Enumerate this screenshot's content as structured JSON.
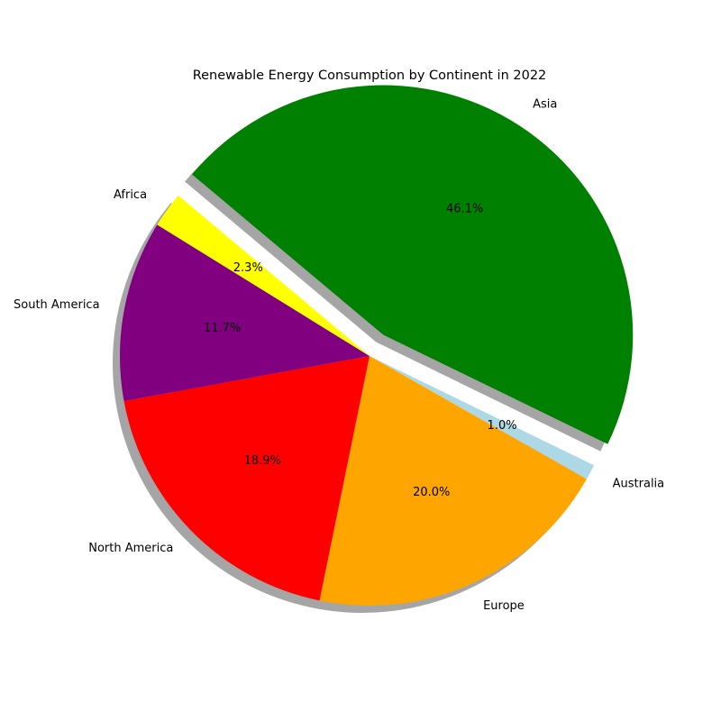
{
  "chart_data": {
    "type": "pie",
    "title": "Renewable Energy Consumption by Continent in 2022",
    "slices": [
      {
        "label": "Asia",
        "value": 46.1,
        "pct_label": "46.1%",
        "color": "#008000",
        "exploded": true
      },
      {
        "label": "Australia",
        "value": 1.0,
        "pct_label": "1.0%",
        "color": "#add8e6",
        "exploded": false
      },
      {
        "label": "Europe",
        "value": 20.0,
        "pct_label": "20.0%",
        "color": "#ffa500",
        "exploded": false
      },
      {
        "label": "North America",
        "value": 18.9,
        "pct_label": "18.9%",
        "color": "#ff0000",
        "exploded": false
      },
      {
        "label": "South America",
        "value": 11.7,
        "pct_label": "11.7%",
        "color": "#800080",
        "exploded": false
      },
      {
        "label": "Africa",
        "value": 2.3,
        "pct_label": "2.3%",
        "color": "#ffff00",
        "exploded": false
      }
    ],
    "start_angle_deg": 140,
    "direction": "clockwise",
    "shadow": true,
    "legend": "none"
  }
}
